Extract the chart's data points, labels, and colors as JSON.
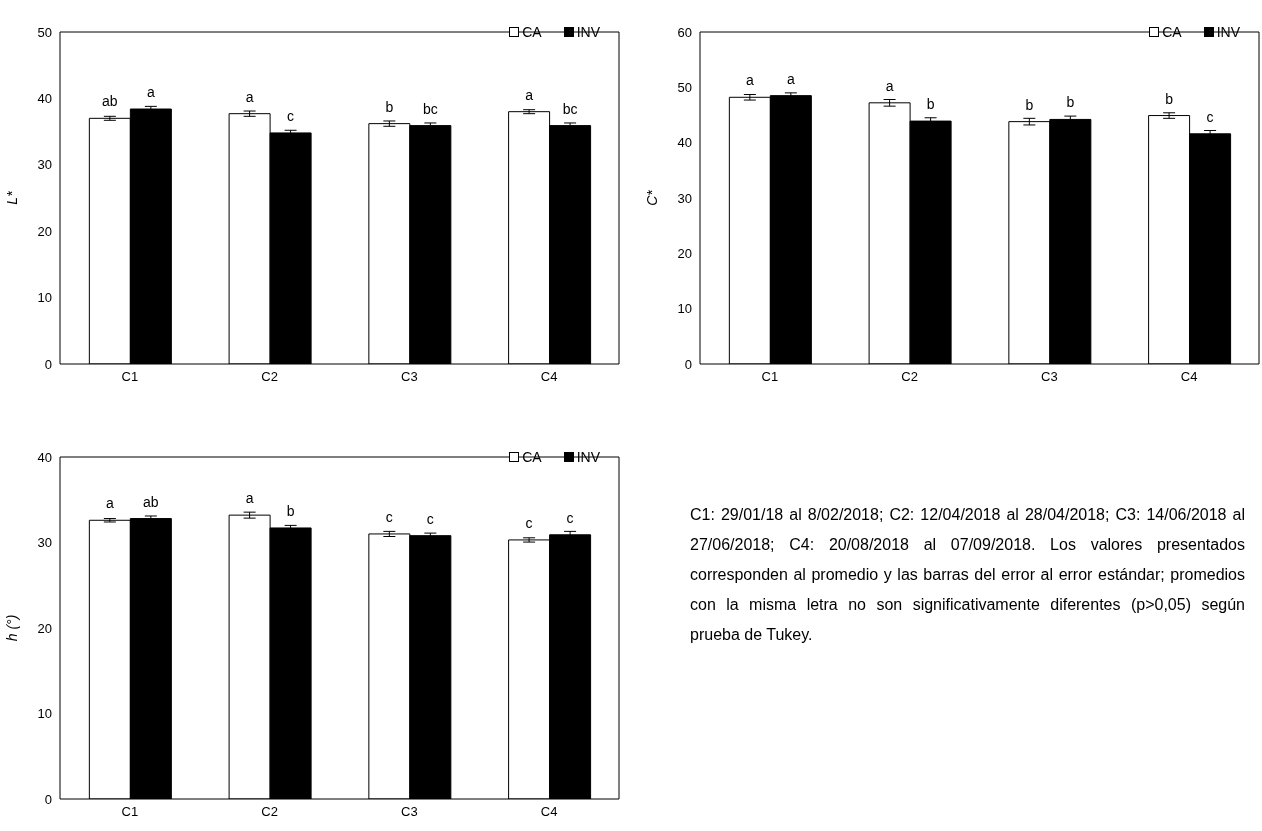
{
  "chart_data": [
    {
      "type": "bar",
      "ylabel": "L*",
      "categories": [
        "C1",
        "C2",
        "C3",
        "C4"
      ],
      "ylim": [
        0,
        50
      ],
      "yticks": [
        0,
        10,
        20,
        30,
        40,
        50
      ],
      "legend": "top right",
      "series": [
        {
          "name": "CA",
          "color": "#ffffff",
          "values": [
            37.0,
            37.7,
            36.2,
            38.0
          ],
          "errors": [
            0.3,
            0.4,
            0.4,
            0.3
          ],
          "value_labels": [
            "ab",
            "a",
            "b",
            "a"
          ]
        },
        {
          "name": "INV",
          "color": "#000000",
          "values": [
            38.4,
            34.8,
            35.9,
            35.9
          ],
          "errors": [
            0.4,
            0.4,
            0.4,
            0.4
          ],
          "value_labels": [
            "a",
            "c",
            "bc",
            "bc"
          ]
        }
      ]
    },
    {
      "type": "bar",
      "ylabel": "C*",
      "categories": [
        "C1",
        "C2",
        "C3",
        "C4"
      ],
      "ylim": [
        0,
        60
      ],
      "yticks": [
        0,
        10,
        20,
        30,
        40,
        50,
        60
      ],
      "legend": "top right",
      "series": [
        {
          "name": "CA",
          "color": "#ffffff",
          "values": [
            48.2,
            47.2,
            43.8,
            44.9
          ],
          "errors": [
            0.5,
            0.6,
            0.6,
            0.5
          ],
          "value_labels": [
            "a",
            "a",
            "b",
            "b"
          ]
        },
        {
          "name": "INV",
          "color": "#000000",
          "values": [
            48.5,
            43.9,
            44.2,
            41.6
          ],
          "errors": [
            0.5,
            0.6,
            0.6,
            0.6
          ],
          "value_labels": [
            "a",
            "b",
            "b",
            "c"
          ]
        }
      ]
    },
    {
      "type": "bar",
      "ylabel": "h (°)",
      "categories": [
        "C1",
        "C2",
        "C3",
        "C4"
      ],
      "ylim": [
        0,
        40
      ],
      "yticks": [
        0,
        10,
        20,
        30,
        40
      ],
      "legend": "top right",
      "series": [
        {
          "name": "CA",
          "color": "#ffffff",
          "values": [
            32.6,
            33.2,
            31.0,
            30.3
          ],
          "errors": [
            0.2,
            0.35,
            0.3,
            0.25
          ],
          "value_labels": [
            "a",
            "a",
            "c",
            "c"
          ]
        },
        {
          "name": "INV",
          "color": "#000000",
          "values": [
            32.8,
            31.7,
            30.8,
            30.9
          ],
          "errors": [
            0.3,
            0.3,
            0.3,
            0.4
          ],
          "value_labels": [
            "ab",
            "b",
            "c",
            "c"
          ]
        }
      ],
      "annotations": [
        "C1: 29/01/18 al 8/02/2018; C2: 12/04/2018 al 28/04/2018; C3: 14/06/2018 al 27/06/2018; C4: 20/08/2018 al 07/09/2018. Los valores presentados corresponden al promedio y las barras del error al error estándar; promedios con la misma letra no son significativamente diferentes (p>0,05) según prueba de Tukey."
      ]
    }
  ]
}
